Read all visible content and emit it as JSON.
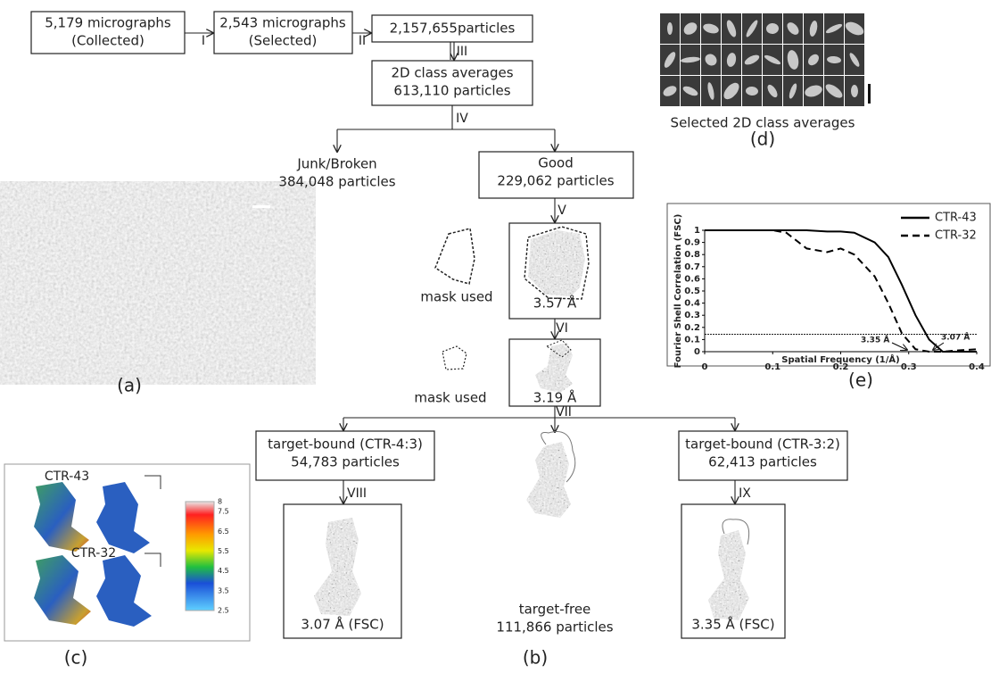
{
  "flow": {
    "nodes": [
      {
        "lines": [
          "5,179 micrographs",
          "(Collected)"
        ]
      },
      {
        "lines": [
          "2,543 micrographs",
          "(Selected)"
        ]
      },
      {
        "lines": [
          "2,157,655particles"
        ]
      },
      {
        "lines": [
          "2D class averages",
          "613,110 particles"
        ]
      },
      {
        "lines": [
          "Junk/Broken",
          "384,048 particles"
        ]
      },
      {
        "lines": [
          "Good",
          "229,062 particles"
        ]
      },
      {
        "lines": [
          "3.57 Å"
        ]
      },
      {
        "lines": [
          "3.19 Å"
        ]
      },
      {
        "lines": [
          "target-bound (CTR-4:3)",
          "54,783 particles"
        ]
      },
      {
        "lines": [
          "target-free",
          "111,866 particles"
        ]
      },
      {
        "lines": [
          "target-bound (CTR-3:2)",
          "62,413 particles"
        ]
      },
      {
        "lines": [
          "3.07 Å (FSC)"
        ]
      },
      {
        "lines": [
          "3.35 Å (FSC)"
        ]
      }
    ],
    "steps": [
      "I",
      "II",
      "III",
      "IV",
      "V",
      "VI",
      "VII",
      "VIII",
      "IX"
    ],
    "mask_labels": [
      "mask used",
      "mask used"
    ]
  },
  "panel_labels": [
    "(a)",
    "(b)",
    "(c)",
    "(d)",
    "(e)"
  ],
  "class_averages_caption": "Selected 2D class averages",
  "local_resolution": {
    "maps": [
      "CTR-43",
      "CTR-32"
    ],
    "colorbar_ticks": [
      8,
      7.5,
      6.5,
      5.5,
      4.5,
      3.5,
      2.5
    ]
  },
  "chart_data": {
    "type": "line",
    "xlabel": "Spatial Frequency (1/Å)",
    "ylabel": "Fourier Shell Correlation (FSC)",
    "x": [
      0,
      0.05,
      0.1,
      0.12,
      0.15,
      0.18,
      0.2,
      0.22,
      0.25,
      0.27,
      0.29,
      0.31,
      0.33,
      0.35,
      0.37,
      0.4
    ],
    "series": [
      {
        "name": "CTR-43",
        "color": "#000000",
        "style": "solid",
        "values": [
          1,
          1,
          1,
          1,
          1,
          0.99,
          0.99,
          0.98,
          0.9,
          0.78,
          0.55,
          0.3,
          0.1,
          0,
          0,
          0
        ]
      },
      {
        "name": "CTR-32",
        "color": "#000000",
        "style": "dashed",
        "values": [
          1,
          1,
          1,
          0.98,
          0.85,
          0.82,
          0.85,
          0.8,
          0.62,
          0.4,
          0.15,
          0.02,
          0,
          0,
          0.01,
          0.02
        ]
      }
    ],
    "threshold": 0.143,
    "annotations": [
      "3.35 Å",
      "3.07 Å"
    ],
    "xlim": [
      0,
      0.4
    ],
    "xticks": [
      0,
      0.1,
      0.2,
      0.3,
      0.4
    ],
    "ylim": [
      0,
      1
    ],
    "yticks": [
      0,
      0.1,
      0.2,
      0.3,
      0.4,
      0.5,
      0.6,
      0.7,
      0.8,
      0.9,
      1
    ],
    "legend": "upper right",
    "grid": false
  }
}
